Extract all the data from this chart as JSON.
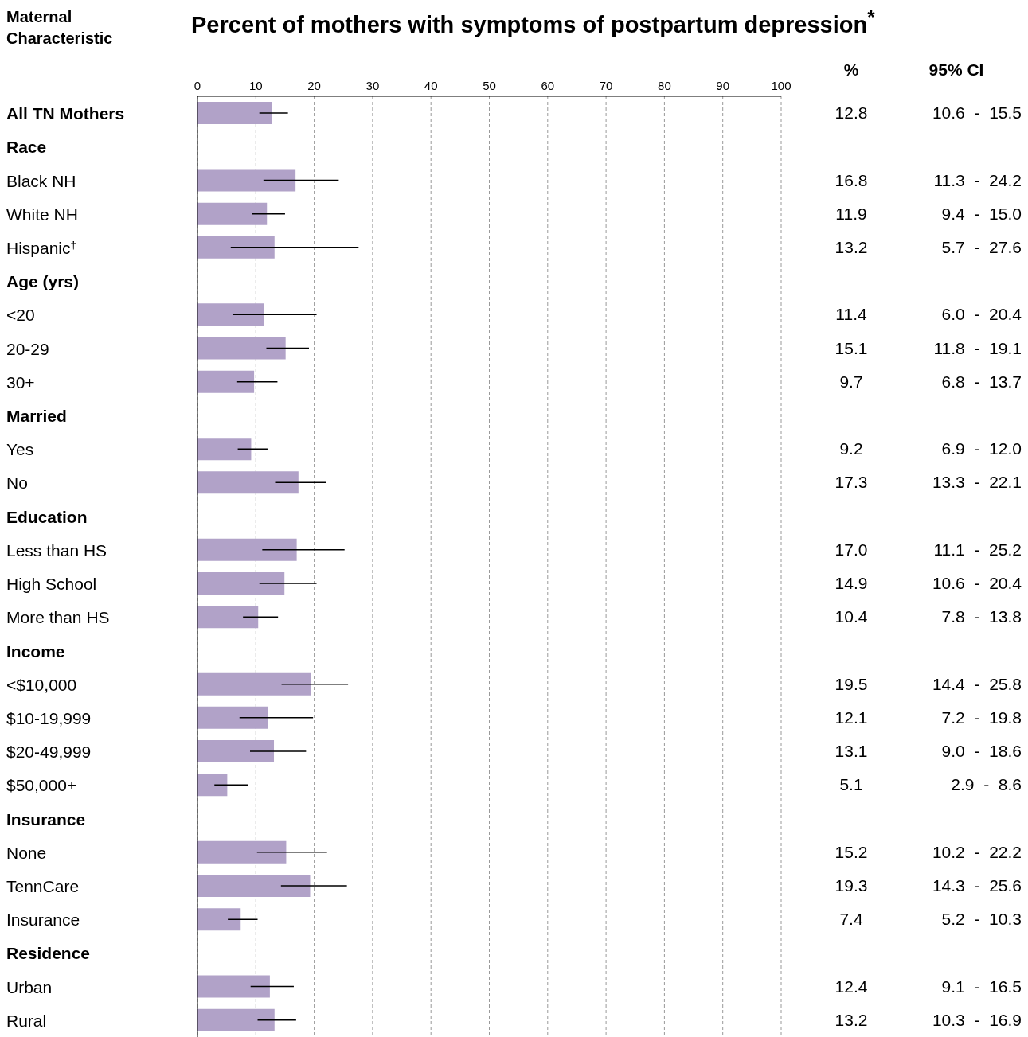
{
  "chart_data": [
    {
      "type": "bar",
      "orientation": "horizontal",
      "title": "Percent of mothers with symptoms of postpartum depression$^{*}$",
      "ylabel": "Maternal Characteristic",
      "categories": [
        "All TN Mothers",
        "Race",
        "Black NH",
        "White NH",
        "Hispanic$^{†}$",
        "Age (yrs)",
        "<20",
        "20-29",
        "30+",
        "Married",
        "Yes",
        "No",
        "Education",
        "Less than HS",
        "High School",
        "More than HS",
        "Income",
        "<$10,000",
        "$10-19,999",
        "$20-49,999",
        "$50,000+",
        "Insurance",
        "None",
        "TennCare",
        "Insurance",
        "Residence",
        "Urban",
        "Rural"
      ],
      "values": [
        12.8,
        null,
        16.8,
        11.9,
        13.2,
        null,
        11.4,
        15.1,
        9.7,
        null,
        9.2,
        17.3,
        null,
        17.0,
        14.9,
        10.4,
        null,
        19.5,
        12.1,
        13.1,
        5.1,
        null,
        15.2,
        19.3,
        7.4,
        null,
        12.4,
        13.2
      ],
      "errors": [
        [
          10.6,
          15.5
        ],
        null,
        [
          11.3,
          24.2
        ],
        [
          9.4,
          15.0
        ],
        [
          5.7,
          27.6
        ],
        null,
        [
          6.0,
          20.4
        ],
        [
          11.8,
          19.1
        ],
        [
          6.8,
          13.7
        ],
        null,
        [
          6.9,
          12.0
        ],
        [
          13.3,
          22.1
        ],
        null,
        [
          11.1,
          25.2
        ],
        [
          10.6,
          20.4
        ],
        [
          7.8,
          13.8
        ],
        null,
        [
          14.4,
          25.8
        ],
        [
          7.2,
          19.8
        ],
        [
          9.0,
          18.6
        ],
        [
          2.9,
          8.6
        ],
        null,
        [
          10.2,
          22.2
        ],
        [
          14.3,
          25.6
        ],
        [
          5.2,
          10.3
        ],
        null,
        [
          9.1,
          16.5
        ],
        [
          10.3,
          16.9
        ]
      ],
      "color": "#b1a2c8",
      "xlim": [
        0,
        100
      ],
      "xticks": [
        0,
        10,
        20,
        30,
        40,
        50,
        60,
        70,
        80,
        90,
        100
      ],
      "grid": "x"
    },
    {
      "type": "other",
      "annotations": [
        "%",
        "95% CI",
        "12.8",
        "10.6  -  15.5",
        "16.8",
        "11.3  -  24.2",
        "11.9",
        "9.4  -  15.0",
        "13.2",
        "5.7  -  27.6",
        "11.4",
        "6.0  -  20.4",
        "15.1",
        "11.8  -  19.1",
        "9.7",
        "6.8  -  13.7",
        "9.2",
        "6.9  -  12.0",
        "17.3",
        "13.3  -  22.1",
        "17.0",
        "11.1  -  25.2",
        "14.9",
        "10.6  -  20.4",
        "10.4",
        "7.8  -  13.8",
        "19.5",
        "14.4  -  25.8",
        "12.1",
        "7.2  -  19.8",
        "13.1",
        "9.0  -  18.6",
        "5.1",
        "2.9  -  8.6",
        "15.2",
        "10.2  -  22.2",
        "19.3",
        "14.3  -  25.6",
        "7.4",
        "5.2  -  10.3",
        "12.4",
        "9.1  -  16.5",
        "13.2",
        "10.3  -  16.9"
      ]
    }
  ]
}
